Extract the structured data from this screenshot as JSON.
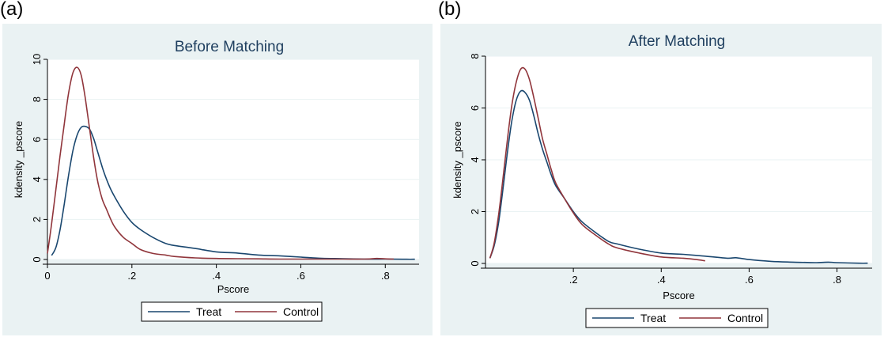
{
  "panels": [
    {
      "label": "(a)"
    },
    {
      "label": "(b)"
    }
  ],
  "colors": {
    "treat": "#1a476f",
    "control": "#90353b",
    "title": "#1f3f5f",
    "background": "#eaf2f3"
  },
  "chart_data": [
    {
      "type": "line",
      "title": "Before Matching",
      "xlabel": "Pscore",
      "ylabel": "kdensity _pscore",
      "xlim": [
        0,
        0.88
      ],
      "ylim": [
        0,
        10
      ],
      "xticks": [
        0,
        0.2,
        0.4,
        0.6,
        0.8
      ],
      "xtick_labels": [
        "0",
        ".2",
        ".4",
        ".6",
        ".8"
      ],
      "yticks": [
        0,
        2,
        4,
        6,
        8,
        10
      ],
      "ytick_labels": [
        "0",
        "2",
        "4",
        "6",
        "8",
        "10"
      ],
      "grid": true,
      "legend": "bottom",
      "series": [
        {
          "name": "Treat",
          "x": [
            0.01,
            0.02,
            0.03,
            0.04,
            0.05,
            0.06,
            0.07,
            0.08,
            0.09,
            0.1,
            0.11,
            0.12,
            0.13,
            0.14,
            0.15,
            0.16,
            0.18,
            0.2,
            0.22,
            0.25,
            0.28,
            0.3,
            0.35,
            0.4,
            0.45,
            0.5,
            0.55,
            0.6,
            0.65,
            0.7,
            0.75,
            0.8,
            0.85,
            0.87
          ],
          "y": [
            0.2,
            0.6,
            1.5,
            2.8,
            4.2,
            5.4,
            6.2,
            6.6,
            6.65,
            6.5,
            6.0,
            5.3,
            4.6,
            4.0,
            3.5,
            3.1,
            2.4,
            1.85,
            1.5,
            1.1,
            0.8,
            0.7,
            0.55,
            0.38,
            0.32,
            0.22,
            0.18,
            0.12,
            0.06,
            0.04,
            0.02,
            0.02,
            0.01,
            0.01
          ]
        },
        {
          "name": "Control",
          "x": [
            0.0,
            0.01,
            0.02,
            0.03,
            0.04,
            0.05,
            0.06,
            0.07,
            0.08,
            0.09,
            0.1,
            0.11,
            0.12,
            0.13,
            0.14,
            0.15,
            0.16,
            0.18,
            0.2,
            0.22,
            0.25,
            0.28,
            0.3,
            0.35,
            0.4,
            0.45,
            0.5,
            0.55,
            0.6,
            0.65,
            0.7,
            0.75,
            0.78,
            0.8,
            0.82
          ],
          "y": [
            0.3,
            1.8,
            3.5,
            5.2,
            6.8,
            8.3,
            9.3,
            9.6,
            9.2,
            8.0,
            6.5,
            5.0,
            3.8,
            3.0,
            2.5,
            2.0,
            1.6,
            1.1,
            0.8,
            0.5,
            0.3,
            0.22,
            0.15,
            0.08,
            0.05,
            0.04,
            0.03,
            0.02,
            0.02,
            0.02,
            0.02,
            0.02,
            0.05,
            0.03,
            0.02
          ]
        }
      ]
    },
    {
      "type": "line",
      "title": "After Matching",
      "xlabel": "Pscore",
      "ylabel": "kdensity _pscore",
      "xlim": [
        0,
        0.88
      ],
      "ylim": [
        0,
        8
      ],
      "xticks": [
        0.2,
        0.4,
        0.6,
        0.8
      ],
      "xtick_labels": [
        ".2",
        ".4",
        ".6",
        ".8"
      ],
      "yticks": [
        0,
        2,
        4,
        6,
        8
      ],
      "ytick_labels": [
        "0",
        "2",
        "4",
        "6",
        "8"
      ],
      "grid": true,
      "legend": "bottom",
      "series": [
        {
          "name": "Treat",
          "x": [
            0.01,
            0.02,
            0.03,
            0.04,
            0.05,
            0.06,
            0.07,
            0.08,
            0.09,
            0.1,
            0.11,
            0.12,
            0.13,
            0.14,
            0.15,
            0.16,
            0.18,
            0.2,
            0.22,
            0.25,
            0.28,
            0.3,
            0.35,
            0.4,
            0.45,
            0.5,
            0.55,
            0.57,
            0.6,
            0.65,
            0.7,
            0.75,
            0.78,
            0.8,
            0.85,
            0.87
          ],
          "y": [
            0.2,
            0.7,
            1.6,
            2.9,
            4.3,
            5.5,
            6.3,
            6.65,
            6.6,
            6.3,
            5.7,
            5.0,
            4.4,
            3.9,
            3.4,
            3.0,
            2.5,
            2.0,
            1.6,
            1.2,
            0.85,
            0.75,
            0.55,
            0.4,
            0.35,
            0.28,
            0.2,
            0.22,
            0.15,
            0.08,
            0.05,
            0.03,
            0.05,
            0.03,
            0.01,
            0.01
          ]
        },
        {
          "name": "Control",
          "x": [
            0.01,
            0.02,
            0.03,
            0.04,
            0.05,
            0.06,
            0.07,
            0.08,
            0.09,
            0.1,
            0.11,
            0.12,
            0.13,
            0.14,
            0.15,
            0.16,
            0.18,
            0.2,
            0.22,
            0.25,
            0.28,
            0.3,
            0.35,
            0.4,
            0.45,
            0.48,
            0.5
          ],
          "y": [
            0.2,
            0.8,
            1.9,
            3.3,
            4.8,
            6.1,
            7.0,
            7.5,
            7.5,
            7.1,
            6.4,
            5.6,
            4.8,
            4.2,
            3.6,
            3.1,
            2.5,
            1.95,
            1.5,
            1.1,
            0.75,
            0.6,
            0.4,
            0.25,
            0.2,
            0.15,
            0.1
          ]
        }
      ]
    }
  ]
}
